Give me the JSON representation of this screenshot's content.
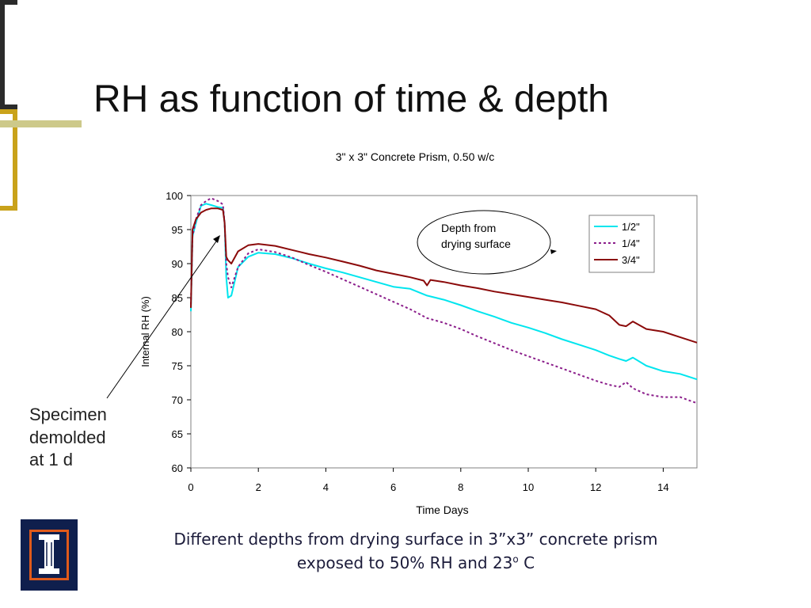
{
  "slide": {
    "title": "RH as function of time & depth",
    "side_note_lines": [
      "Specimen",
      "demolded",
      "at 1 d"
    ],
    "caption_line1": "Different depths from drying surface in 3”x3” concrete prism",
    "caption_line2_pre": "exposed to 50% RH and 23",
    "caption_sup": "o",
    "caption_line2_post": " C",
    "colors": {
      "accent_olive": "#cdc98a",
      "bracket_gold": "#c9a21a",
      "bracket_dark": "#2b2b2b",
      "logo_navy": "#0f1f4d",
      "logo_orange": "#e05a1a"
    },
    "icons": {
      "logo": "illinois-column-logo-icon"
    }
  },
  "chart_data": {
    "type": "line",
    "title": "3\" x 3\" Concrete Prism, 0.50 w/c",
    "xlabel": "Time Days",
    "ylabel": "Internal RH (%)",
    "xlim": [
      0,
      15
    ],
    "ylim": [
      60,
      100
    ],
    "x_ticks": [
      0,
      2,
      4,
      6,
      8,
      10,
      12,
      14
    ],
    "y_ticks": [
      60,
      65,
      70,
      75,
      80,
      85,
      90,
      95,
      100
    ],
    "grid": false,
    "legend_position": "top-right",
    "annotation": {
      "text_lines": [
        "Depth from",
        "drying surface"
      ]
    },
    "series": [
      {
        "name": "1/2\"",
        "color": "#00e5ee",
        "dash": "solid",
        "x": [
          0,
          0.05,
          0.15,
          0.3,
          0.45,
          0.6,
          0.8,
          0.95,
          1.0,
          1.05,
          1.1,
          1.2,
          1.4,
          1.7,
          2.0,
          2.5,
          3.0,
          3.5,
          4.0,
          4.5,
          5.0,
          5.5,
          6.0,
          6.5,
          7.0,
          7.5,
          8.0,
          8.5,
          9.0,
          9.5,
          10.0,
          10.5,
          11.0,
          11.5,
          12.0,
          12.4,
          12.7,
          12.9,
          13.1,
          13.5,
          14.0,
          14.5,
          15.0
        ],
        "y": [
          83,
          94,
          96,
          98.5,
          98.8,
          98.6,
          98.3,
          98.2,
          96,
          88,
          85,
          85.3,
          89.5,
          91,
          91.6,
          91.4,
          90.8,
          90.0,
          89.3,
          88.7,
          88.0,
          87.3,
          86.6,
          86.3,
          85.3,
          84.7,
          83.9,
          83.0,
          82.2,
          81.3,
          80.6,
          79.8,
          78.9,
          78.1,
          77.3,
          76.5,
          76.0,
          75.7,
          76.2,
          75.0,
          74.2,
          73.8,
          73.0
        ]
      },
      {
        "name": "1/4\"",
        "color": "#8b1e8b",
        "dash": "dotted",
        "x": [
          0,
          0.05,
          0.15,
          0.3,
          0.45,
          0.6,
          0.8,
          0.95,
          1.0,
          1.05,
          1.1,
          1.2,
          1.4,
          1.7,
          2.0,
          2.5,
          3.0,
          3.5,
          4.0,
          4.5,
          5.0,
          5.5,
          6.0,
          6.5,
          7.0,
          7.5,
          8.0,
          8.5,
          9.0,
          9.5,
          10.0,
          10.5,
          11.0,
          11.5,
          12.0,
          12.4,
          12.7,
          12.9,
          13.1,
          13.5,
          14.0,
          14.5,
          15.0
        ],
        "y": [
          84,
          94,
          96.5,
          98.6,
          99.2,
          99.6,
          99.2,
          98.7,
          96,
          90,
          88,
          86.5,
          89.5,
          91.5,
          92.1,
          91.7,
          90.9,
          89.8,
          88.8,
          87.7,
          86.6,
          85.5,
          84.4,
          83.3,
          82.0,
          81.3,
          80.4,
          79.3,
          78.3,
          77.3,
          76.4,
          75.5,
          74.6,
          73.7,
          72.8,
          72.2,
          71.9,
          72.6,
          71.7,
          70.8,
          70.4,
          70.4,
          69.5
        ]
      },
      {
        "name": "3/4\"",
        "color": "#8b0a0a",
        "dash": "solid",
        "x": [
          0,
          0.05,
          0.15,
          0.3,
          0.45,
          0.6,
          0.8,
          0.95,
          1.0,
          1.05,
          1.1,
          1.2,
          1.4,
          1.7,
          2.0,
          2.5,
          3.0,
          3.5,
          4.0,
          4.5,
          5.0,
          5.5,
          6.0,
          6.5,
          6.9,
          7.0,
          7.1,
          7.5,
          8.0,
          8.5,
          9.0,
          9.5,
          10.0,
          10.5,
          11.0,
          11.5,
          12.0,
          12.4,
          12.7,
          12.9,
          13.1,
          13.5,
          14.0,
          14.5,
          15.0
        ],
        "y": [
          83.5,
          95,
          96.5,
          97.5,
          97.9,
          98.1,
          98.1,
          97.9,
          96,
          91,
          90.5,
          90,
          91.8,
          92.7,
          92.9,
          92.6,
          92.0,
          91.4,
          90.9,
          90.3,
          89.7,
          89.0,
          88.5,
          88.0,
          87.5,
          86.8,
          87.6,
          87.3,
          86.8,
          86.4,
          85.9,
          85.5,
          85.1,
          84.7,
          84.3,
          83.8,
          83.3,
          82.4,
          81.0,
          80.8,
          81.5,
          80.4,
          80.0,
          79.2,
          78.4
        ]
      }
    ]
  }
}
